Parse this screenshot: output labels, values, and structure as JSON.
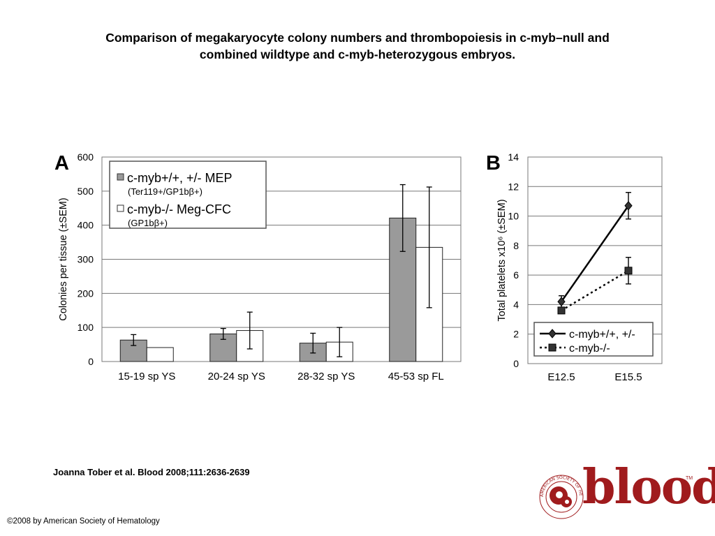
{
  "title": {
    "line1": "Comparison of megakaryocyte colony numbers and thrombopoiesis in c-myb–null and",
    "line2": "combined wildtype and c-myb-heterozygous embryos."
  },
  "citation": "Joanna Tober et al. Blood 2008;111:2636-2639",
  "copyright": "©2008 by American Society of Hematology",
  "logo": {
    "word": "blood",
    "ring_text": "AMERICAN SOCIETY OF HEMATOLOGY",
    "tm": "TM"
  },
  "colors": {
    "bar_fill_a": "#9a9a9a",
    "bar_fill_b": "#ffffff",
    "grid": "#777777",
    "logo_red": "#a01b1d"
  },
  "chart_data": [
    {
      "panel": "A",
      "type": "bar",
      "ylabel": "Colonies per tissue (±SEM)",
      "ylim": [
        0,
        600
      ],
      "yticks": [
        0,
        100,
        200,
        300,
        400,
        500,
        600
      ],
      "grid": true,
      "legend_position": "top-left",
      "categories": [
        "15-19 sp YS",
        "20-24 sp YS",
        "28-32 sp YS",
        "45-53 sp FL"
      ],
      "series": [
        {
          "name": "c-myb+/+, +/- MEP",
          "sublabel": "(Ter119+/GP1bβ+)",
          "fill": "gray",
          "values": [
            63,
            81,
            54,
            421
          ],
          "errors": [
            16,
            16,
            29,
            98
          ]
        },
        {
          "name": "c-myb-/- Meg-CFC",
          "sublabel": "(GP1bβ+)",
          "fill": "white",
          "values": [
            41,
            91,
            57,
            335
          ],
          "errors": [
            0,
            54,
            43,
            177
          ]
        }
      ]
    },
    {
      "panel": "B",
      "type": "line",
      "ylabel": "Total platelets x10⁶ (±SEM)",
      "ylim": [
        0,
        14
      ],
      "yticks": [
        0,
        2,
        4,
        6,
        8,
        10,
        12,
        14
      ],
      "grid": true,
      "legend_position": "bottom",
      "categories": [
        "E12.5",
        "E15.5"
      ],
      "series": [
        {
          "name": "c-myb+/+, +/-",
          "style": "solid",
          "marker": "diamond",
          "values": [
            4.2,
            10.7
          ],
          "errors": [
            0.4,
            0.9
          ]
        },
        {
          "name": "c-myb-/-",
          "style": "dotted",
          "marker": "square",
          "values": [
            3.6,
            6.3
          ],
          "errors": [
            0.1,
            0.9
          ]
        }
      ]
    }
  ]
}
